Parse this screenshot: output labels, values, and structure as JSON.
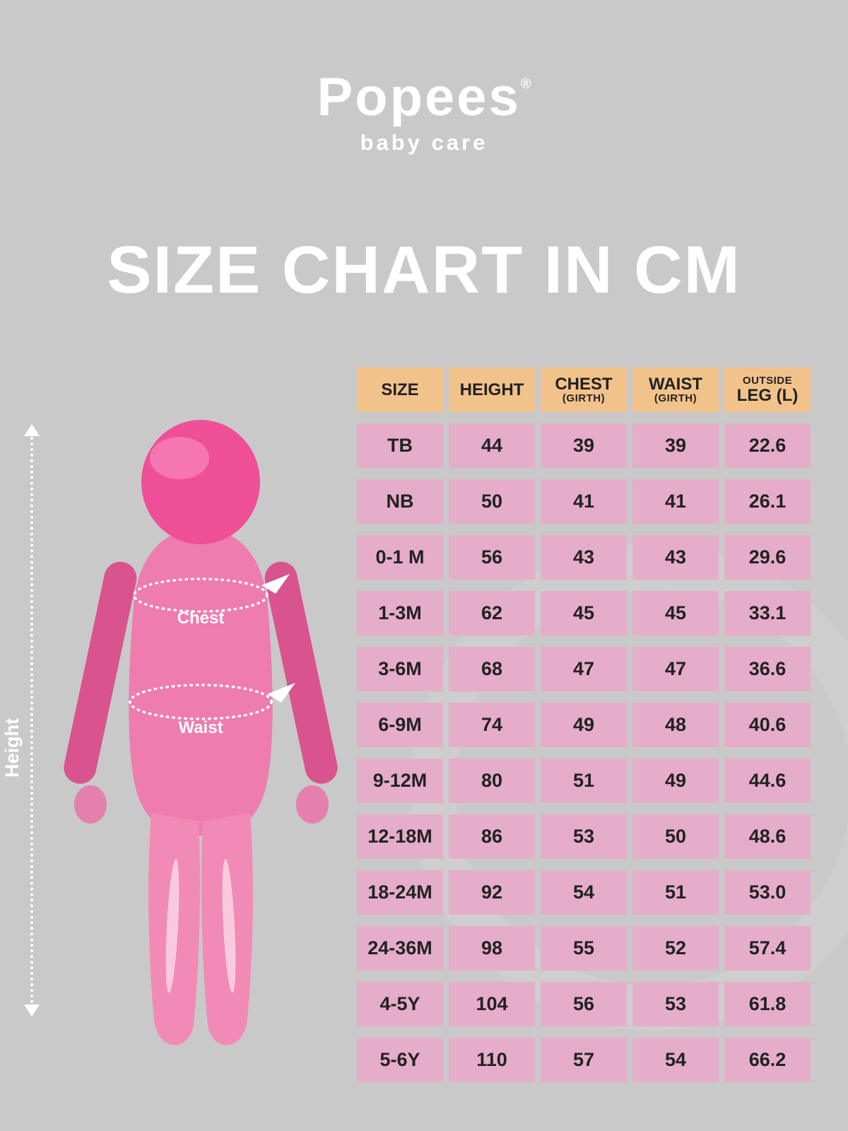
{
  "brand": {
    "name": "Popees",
    "registered_mark": "®",
    "tagline": "baby care"
  },
  "title": "SIZE CHART IN CM",
  "figure": {
    "height_label": "Height",
    "chest_label": "Chest",
    "waist_label": "Waist"
  },
  "colors": {
    "background": "#c9c9c9",
    "header_cell": "#f2c28b",
    "data_cell": "#e5adc9",
    "figure_pink": "#ee7cae",
    "figure_pink_dark": "#d9548f",
    "figure_pink_head": "#ef4f97",
    "text_dark": "#222222",
    "text_white": "#ffffff"
  },
  "table": {
    "header_lines": [
      {
        "id": "size",
        "lines": [
          {
            "text": "SIZE",
            "small": false
          }
        ]
      },
      {
        "id": "height",
        "lines": [
          {
            "text": "HEIGHT",
            "small": false
          }
        ]
      },
      {
        "id": "chest",
        "lines": [
          {
            "text": "CHEST",
            "small": false
          },
          {
            "text": "(GIRTH)",
            "small": true
          }
        ]
      },
      {
        "id": "waist",
        "lines": [
          {
            "text": "WAIST",
            "small": false
          },
          {
            "text": "(GIRTH)",
            "small": true
          }
        ]
      },
      {
        "id": "outside-leg",
        "lines": [
          {
            "text": "OUTSIDE",
            "small": true
          },
          {
            "text": "LEG (L)",
            "small": false
          }
        ]
      }
    ]
  },
  "chart_data": {
    "type": "table",
    "title": "SIZE CHART IN CM",
    "units": "cm",
    "columns": [
      "SIZE",
      "HEIGHT",
      "CHEST (GIRTH)",
      "WAIST (GIRTH)",
      "OUTSIDE LEG (L)"
    ],
    "rows": [
      [
        "TB",
        "44",
        "39",
        "39",
        "22.6"
      ],
      [
        "NB",
        "50",
        "41",
        "41",
        "26.1"
      ],
      [
        "0-1 M",
        "56",
        "43",
        "43",
        "29.6"
      ],
      [
        "1-3M",
        "62",
        "45",
        "45",
        "33.1"
      ],
      [
        "3-6M",
        "68",
        "47",
        "47",
        "36.6"
      ],
      [
        "6-9M",
        "74",
        "49",
        "48",
        "40.6"
      ],
      [
        "9-12M",
        "80",
        "51",
        "49",
        "44.6"
      ],
      [
        "12-18M",
        "86",
        "53",
        "50",
        "48.6"
      ],
      [
        "18-24M",
        "92",
        "54",
        "51",
        "53.0"
      ],
      [
        "24-36M",
        "98",
        "55",
        "52",
        "57.4"
      ],
      [
        "4-5Y",
        "104",
        "56",
        "53",
        "61.8"
      ],
      [
        "5-6Y",
        "110",
        "57",
        "54",
        "66.2"
      ]
    ]
  }
}
